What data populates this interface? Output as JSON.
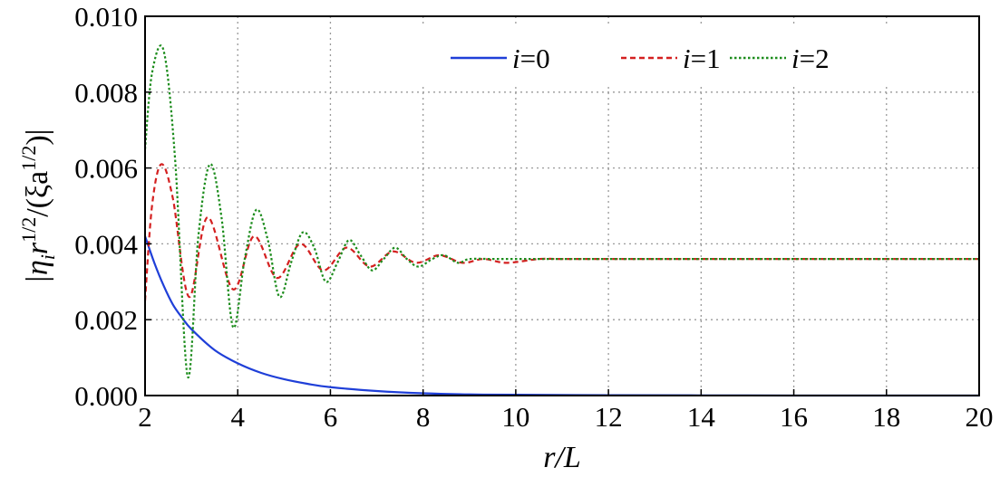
{
  "chart_data": {
    "type": "line",
    "xlabel": "r/L",
    "ylabel_parts": {
      "open": "|η",
      "sub_i": "i",
      "r": "r",
      "sup1": "1/2",
      "mid": "/(ξa",
      "sup2": "1/2",
      "close": ")|"
    },
    "xlim": [
      2,
      20
    ],
    "ylim": [
      0,
      0.01
    ],
    "x_ticks": [
      2,
      4,
      6,
      8,
      10,
      12,
      14,
      16,
      18,
      20
    ],
    "x_tick_labels": [
      "2",
      "4",
      "6",
      "8",
      "10",
      "12",
      "14",
      "16",
      "18",
      "20"
    ],
    "y_ticks": [
      0,
      0.002,
      0.004,
      0.006,
      0.008,
      0.01
    ],
    "y_tick_labels": [
      "0.000",
      "0.002",
      "0.004",
      "0.006",
      "0.008",
      "0.010"
    ],
    "grid": true,
    "legend_position": "top-right",
    "series": [
      {
        "name": "i=0",
        "label_var": "i",
        "label_rest": "=0",
        "color": "#1f3fd8",
        "style": "solid",
        "x": [
          2,
          2.2,
          2.4,
          2.6,
          2.8,
          3,
          3.5,
          4,
          4.5,
          5,
          5.5,
          6,
          7,
          8,
          9,
          10,
          12,
          14,
          16,
          18,
          20
        ],
        "values": [
          0.0042,
          0.0035,
          0.0029,
          0.0024,
          0.00205,
          0.00175,
          0.0012,
          0.00085,
          0.0006,
          0.00043,
          0.00031,
          0.00022,
          0.00012,
          6e-05,
          3e-05,
          2e-05,
          1e-05,
          5e-06,
          0,
          0,
          0
        ]
      },
      {
        "name": "i=1",
        "label_var": "i",
        "label_rest": "=1",
        "color": "#d42020",
        "style": "dashed",
        "x": [
          2,
          2.15,
          2.35,
          2.6,
          2.95,
          3.35,
          3.9,
          4.35,
          4.85,
          5.35,
          5.85,
          6.35,
          6.85,
          7.35,
          7.85,
          8.35,
          8.85,
          9.3,
          9.8,
          10.5,
          11,
          12,
          14,
          16,
          18,
          20
        ],
        "values": [
          0.0025,
          0.005,
          0.0061,
          0.0052,
          0.0026,
          0.0047,
          0.0028,
          0.0042,
          0.0031,
          0.004,
          0.0033,
          0.0039,
          0.0034,
          0.0038,
          0.0035,
          0.0037,
          0.0035,
          0.0036,
          0.0035,
          0.0036,
          0.0036,
          0.0036,
          0.0036,
          0.0036,
          0.0036,
          0.0036
        ]
      },
      {
        "name": "i=2",
        "label_var": "i",
        "label_rest": "=2",
        "color": "#1c8c1c",
        "style": "dotted",
        "x": [
          2,
          2.15,
          2.4,
          2.65,
          2.92,
          3.15,
          3.4,
          3.65,
          3.9,
          4.15,
          4.4,
          4.65,
          4.9,
          5.15,
          5.4,
          5.65,
          5.9,
          6.15,
          6.4,
          6.65,
          6.9,
          7.15,
          7.4,
          7.65,
          7.9,
          8.2,
          8.45,
          8.75,
          9,
          9.5,
          10,
          10.5,
          11,
          12,
          14,
          16,
          18,
          20
        ],
        "values": [
          0.0065,
          0.0085,
          0.0091,
          0.0062,
          0.0005,
          0.0042,
          0.0061,
          0.0047,
          0.0018,
          0.0036,
          0.0049,
          0.0041,
          0.0026,
          0.0035,
          0.0043,
          0.0039,
          0.003,
          0.0035,
          0.0041,
          0.0037,
          0.0033,
          0.0036,
          0.0039,
          0.0036,
          0.0034,
          0.0036,
          0.0037,
          0.0035,
          0.0036,
          0.0036,
          0.0036,
          0.0036,
          0.0036,
          0.0036,
          0.0036,
          0.0036,
          0.0036,
          0.0036
        ]
      }
    ]
  }
}
